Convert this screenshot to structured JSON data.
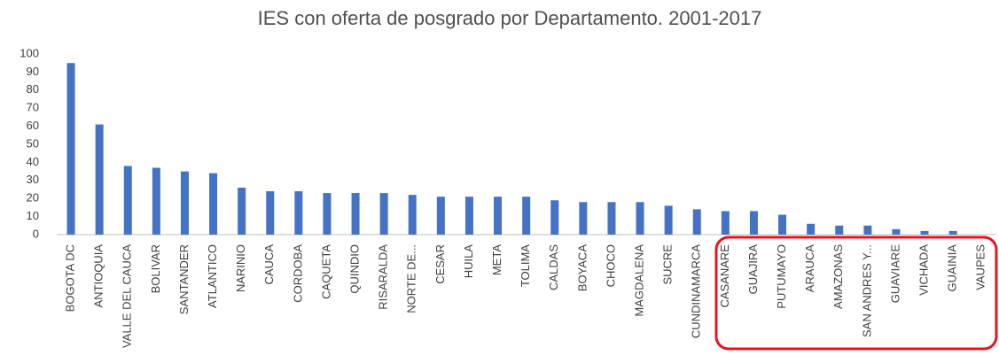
{
  "chart_data": {
    "type": "bar",
    "title": "IES con oferta de posgrado por Departamento. 2001-2017",
    "categories": [
      "BOGOTA DC",
      "ANTIOQUIA",
      "VALLE DEL CAUCA",
      "BOLIVAR",
      "SANTANDER",
      "ATLANTICO",
      "NARINIO",
      "CAUCA",
      "CORDOBA",
      "CAQUETA",
      "QUINDIO",
      "RISARALDA",
      "NORTE DE...",
      "CESAR",
      "HUILA",
      "META",
      "TOLIMA",
      "CALDAS",
      "BOYACA",
      "CHOCO",
      "MAGDALENA",
      "SUCRE",
      "CUNDINAMARCA",
      "CASANARE",
      "GUAJIRA",
      "PUTUMAYO",
      "ARAUCA",
      "AMAZONAS",
      "SAN ANDRES Y...",
      "GUAVIARE",
      "VICHADA",
      "GUAINIA",
      "VAUPES"
    ],
    "values": [
      95,
      61,
      38,
      37,
      35,
      34,
      26,
      24,
      24,
      23,
      23,
      23,
      22,
      21,
      21,
      21,
      21,
      19,
      18,
      18,
      18,
      16,
      14,
      13,
      13,
      11,
      6,
      5,
      5,
      3,
      2,
      2,
      0
    ],
    "color": "#4472c4",
    "ylim": [
      0,
      100
    ],
    "yticks": [
      0,
      10,
      20,
      30,
      40,
      50,
      60,
      70,
      80,
      90,
      100
    ],
    "grid": false
  }
}
